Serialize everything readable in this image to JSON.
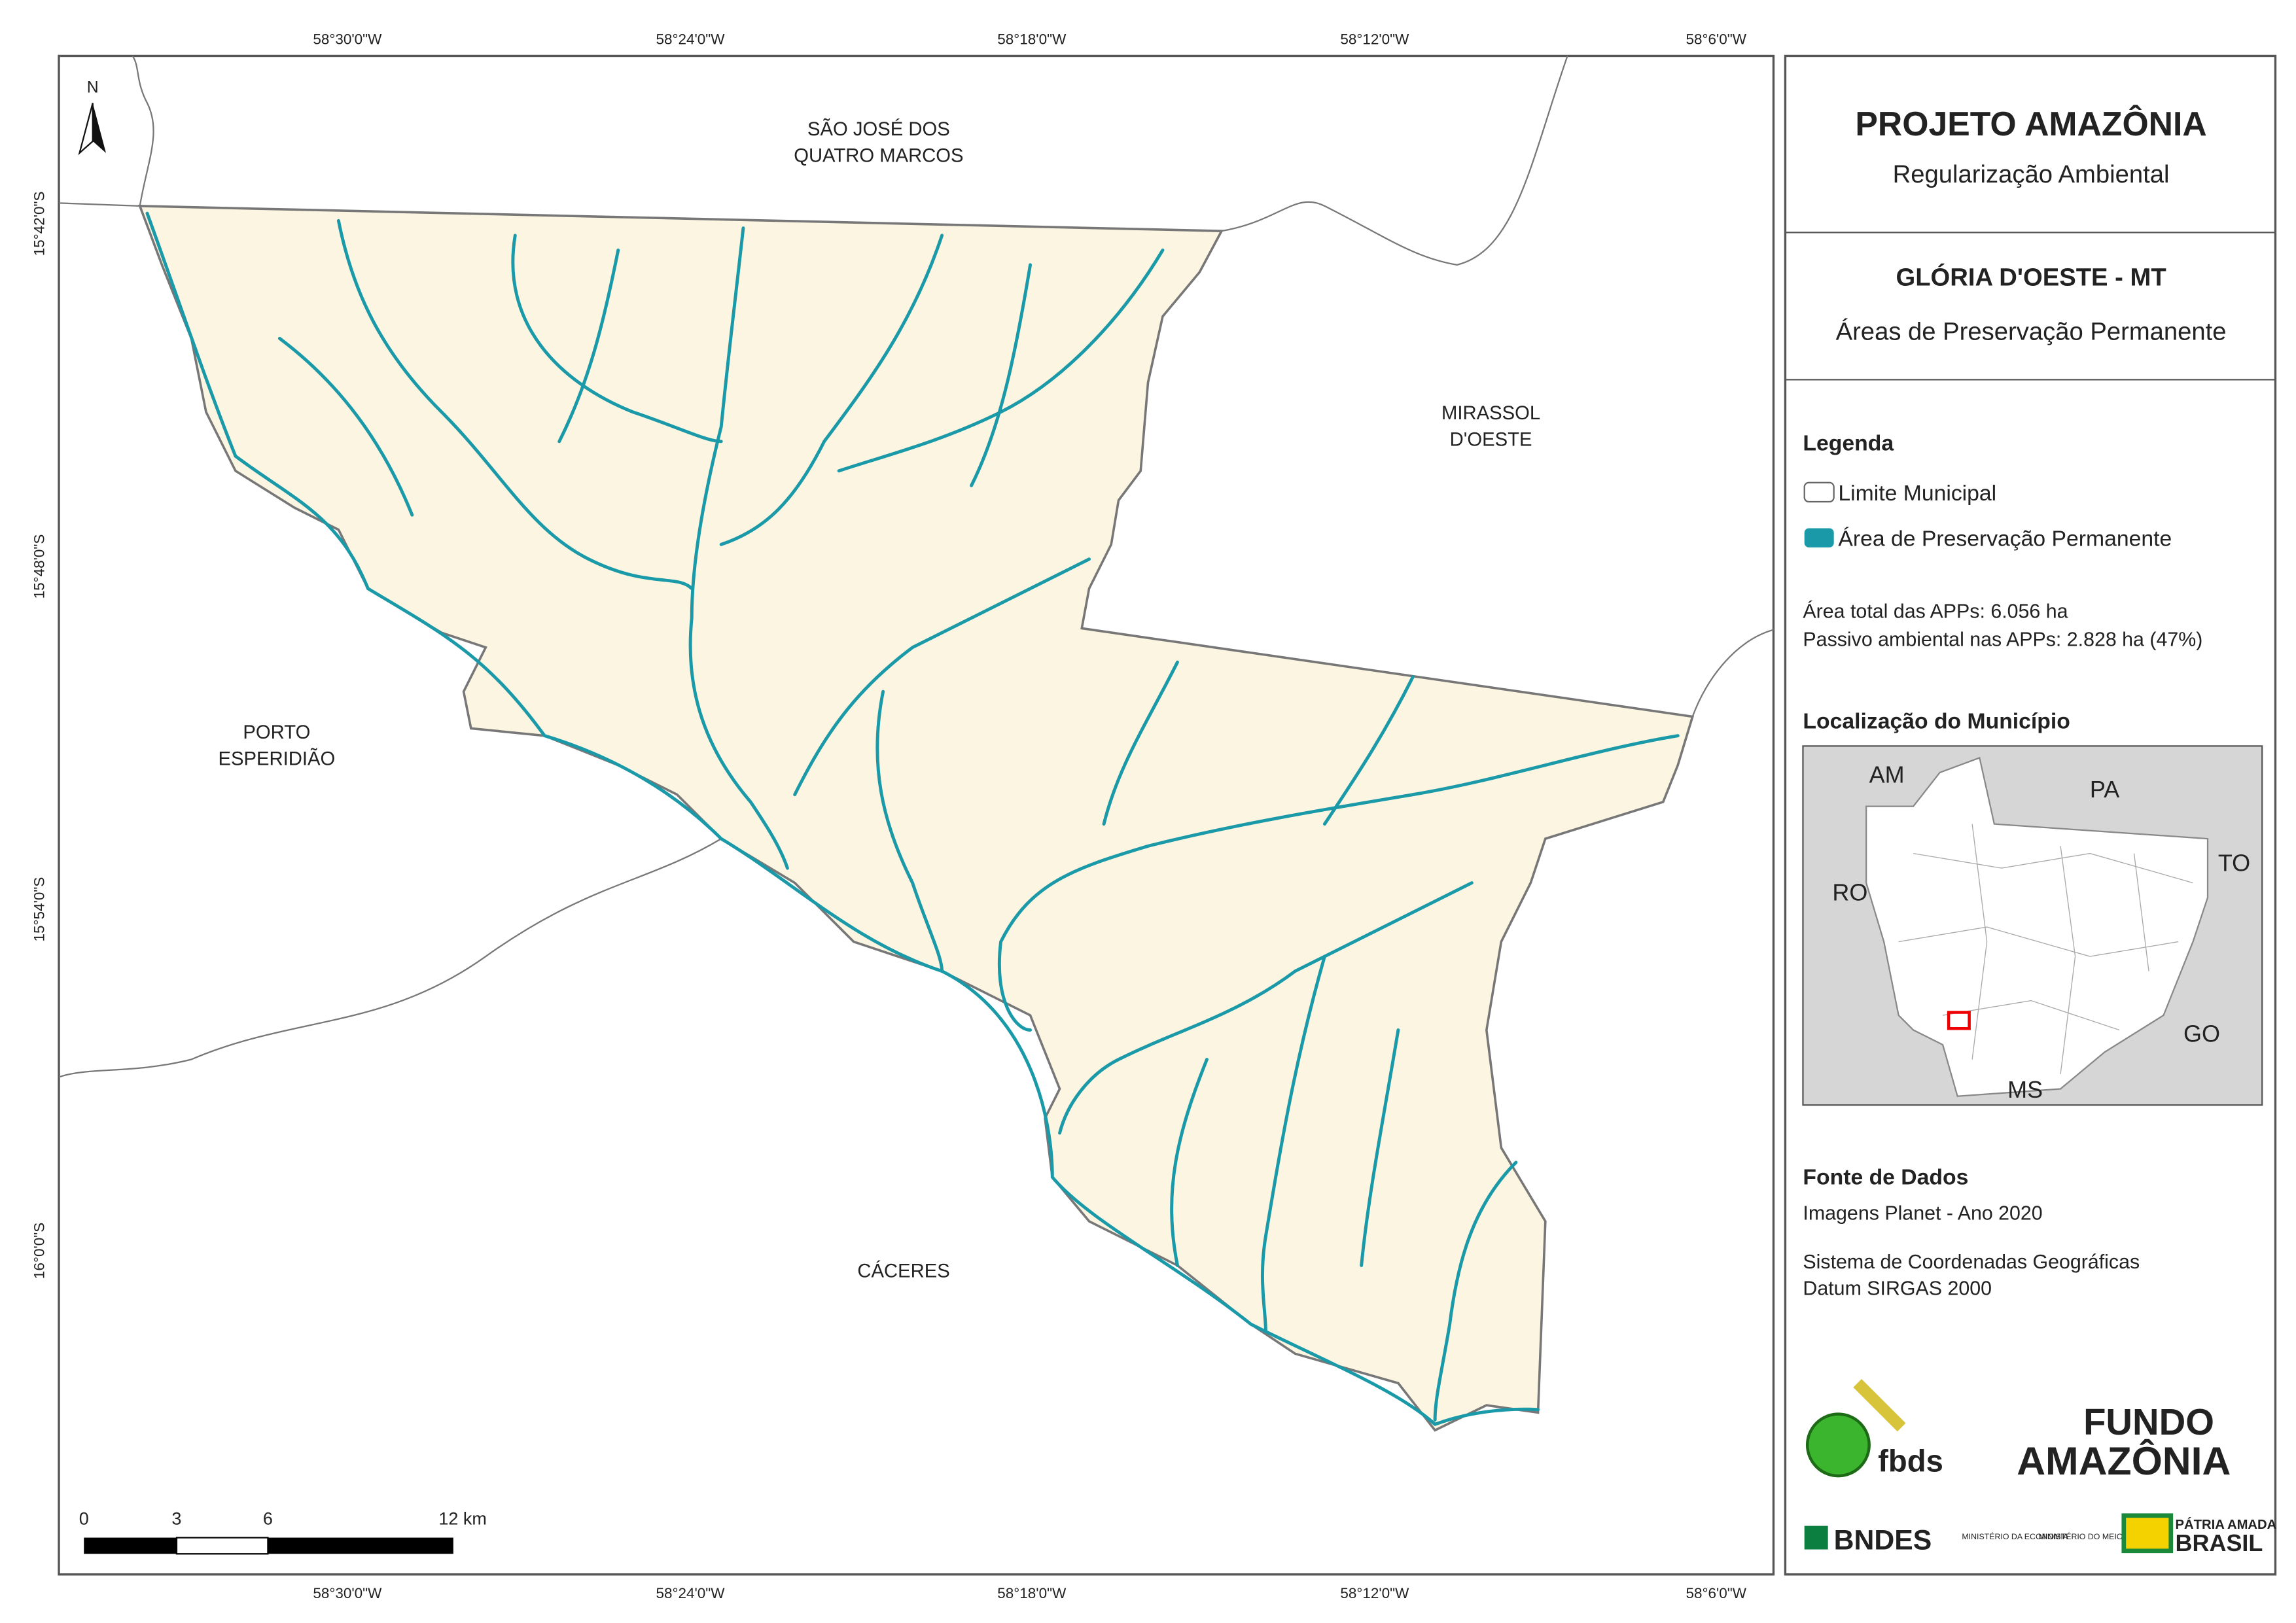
{
  "map": {
    "top_ticks": [
      "58°30'0\"W",
      "58°24'0\"W",
      "58°18'0\"W",
      "58°12'0\"W",
      "58°6'0\"W"
    ],
    "left_ticks": [
      "15°42'0\"S",
      "15°48'0\"S",
      "15°54'0\"S",
      "16°0'0\"S"
    ],
    "north": "N",
    "neighbors": [
      [
        "SÃO JOSÉ DOS",
        "QUATRO MARCOS"
      ],
      [
        "MIRASSOL",
        "D'OESTE"
      ],
      [
        "PORTO",
        "ESPERIDIÃO"
      ],
      [
        "CÁCERES"
      ]
    ],
    "scale_labels": [
      "0",
      "3",
      "6",
      "12 km"
    ]
  },
  "panel": {
    "title": "PROJETO AMAZÔNIA",
    "subtitle": "Regularização Ambiental",
    "municipality": "GLÓRIA D'OESTE - MT",
    "theme": "Áreas de Preservação Permanente",
    "legend": {
      "title": "Legenda",
      "items": [
        "Limite Municipal",
        "Área de Preservação Permanente"
      ]
    },
    "stats": [
      "Área total das APPs: 6.056 ha",
      "Passivo ambiental nas APPs: 2.828 ha (47%)"
    ],
    "location": {
      "title": "Localização do Município",
      "states": [
        "AM",
        "PA",
        "TO",
        "RO",
        "GO",
        "MS"
      ]
    },
    "sources": {
      "title": "Fonte de Dados",
      "lines": [
        "Imagens Planet - Ano 2020",
        "Sistema de Coordenadas Geográficas",
        "Datum SIRGAS 2000"
      ]
    },
    "logos": [
      "fbds",
      "FUNDO",
      "AMAZÔNIA",
      "BNDES",
      "MINISTÉRIO DA ECONOMIA",
      "MINISTÉRIO DO MEIO AMBIENTE",
      "PÁTRIA AMADA",
      "BRASIL"
    ]
  }
}
